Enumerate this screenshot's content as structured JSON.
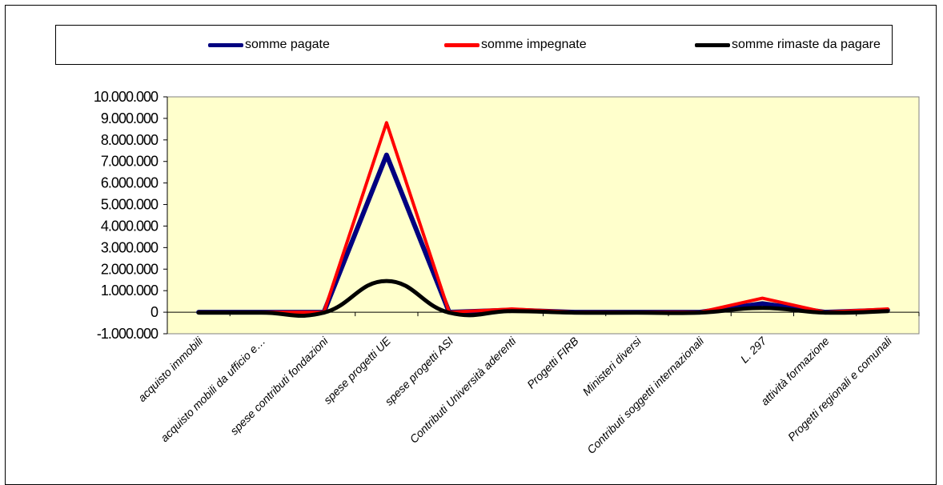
{
  "chart_data": {
    "type": "line",
    "categories": [
      "acquisto immobili",
      "acquisto mobili da ufficio e…",
      "spese contributi fondazioni",
      "spese progetti UE",
      "spese progetti ASI",
      "Contributi Università aderenti",
      "Progetti FIRB",
      "Ministeri diversi",
      "Contributi soggetti internazionali",
      "L. 297",
      "attività formazione",
      "Progetti regionali e comunali"
    ],
    "series": [
      {
        "name": "somme pagate",
        "color": "#000080",
        "values": [
          0,
          0,
          0,
          7300000,
          0,
          100000,
          0,
          0,
          0,
          400000,
          0,
          100000
        ]
      },
      {
        "name": "somme impegnate",
        "color": "#ff0000",
        "values": [
          0,
          0,
          0,
          8800000,
          0,
          150000,
          0,
          0,
          0,
          650000,
          0,
          150000
        ]
      },
      {
        "name": "somme rimaste da pagare",
        "color": "#000000",
        "values": [
          -20000,
          -20000,
          -20000,
          1450000,
          -20000,
          50000,
          -20000,
          -20000,
          -20000,
          200000,
          -20000,
          50000
        ]
      }
    ],
    "ylim": [
      -1000000,
      10000000
    ],
    "yticks": [
      -1000000,
      0,
      1000000,
      2000000,
      3000000,
      4000000,
      5000000,
      6000000,
      7000000,
      8000000,
      9000000,
      10000000
    ],
    "ytick_labels": [
      "-1.000.000",
      "0",
      "1.000.000",
      "2.000.000",
      "3.000.000",
      "4.000.000",
      "5.000.000",
      "6.000.000",
      "7.000.000",
      "8.000.000",
      "9.000.000",
      "10.000.000"
    ],
    "plot_background": "#ffffcc",
    "legend_position": "top",
    "grid": false
  }
}
